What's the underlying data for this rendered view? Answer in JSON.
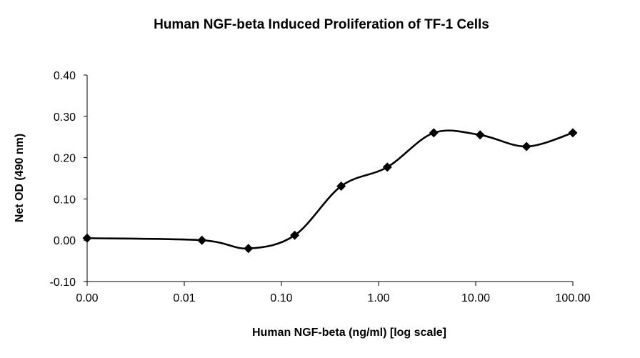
{
  "chart_data": {
    "type": "line",
    "title": "Human NGF-beta Induced Proliferation of TF-1 Cells",
    "xlabel": "Human NGF-beta (ng/ml) [log scale]",
    "ylabel": "Net OD (490 nm)",
    "x_scale": "log",
    "xlim": [
      0.001,
      100
    ],
    "ylim": [
      -0.1,
      0.4
    ],
    "x_tick_values": [
      0.001,
      0.01,
      0.1,
      1,
      10,
      100
    ],
    "x_tick_labels": [
      "0.00",
      "0.01",
      "0.10",
      "1.00",
      "10.00",
      "100.00"
    ],
    "y_ticks": [
      -0.1,
      0.0,
      0.1,
      0.2,
      0.3,
      0.4
    ],
    "y_tick_labels": [
      "-0.10",
      "0.00",
      "0.10",
      "0.20",
      "0.30",
      "0.40"
    ],
    "grid": false,
    "legend": "none",
    "marker": "diamond",
    "smooth": true,
    "series": [
      {
        "x": [
          0.001,
          0.0152,
          0.0457,
          0.137,
          0.412,
          1.23,
          3.7,
          11.1,
          33.3,
          100
        ],
        "y": [
          0.005,
          0.0,
          -0.02,
          0.012,
          0.131,
          0.177,
          0.26,
          0.255,
          0.227,
          0.26
        ]
      }
    ]
  }
}
